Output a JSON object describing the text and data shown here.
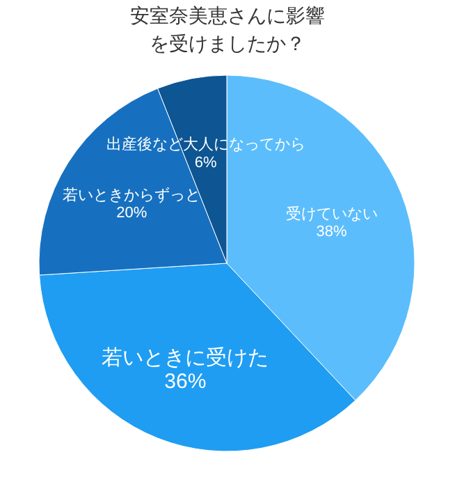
{
  "chart_data": {
    "type": "pie",
    "title": "安室奈美恵さんに影響を受けましたか？",
    "categories": [
      "受けていない",
      "若いときに受けた",
      "若いときからずっと",
      "出産後など大人になってから"
    ],
    "values": [
      38,
      36,
      20,
      6
    ],
    "value_labels": [
      "38%",
      "36%",
      "20%",
      "6%"
    ],
    "colors": [
      "#5cbdfc",
      "#1f9df2",
      "#1670bf",
      "#0d5593"
    ],
    "legend": false
  }
}
